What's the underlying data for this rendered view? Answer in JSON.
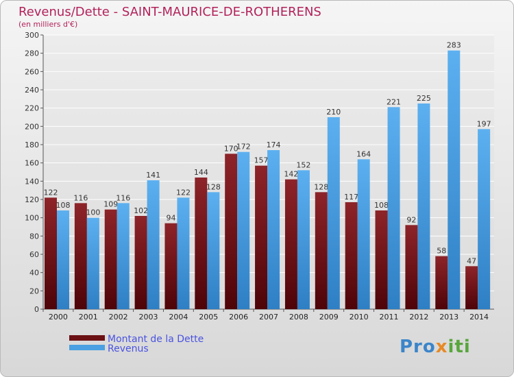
{
  "title": "Revenus/Dette - SAINT-MAURICE-DE-ROTHERENS",
  "subtitle": "(en milliers d'€)",
  "logo_text": "Proxiti",
  "colors": {
    "title": "#b2225a",
    "dette": "#7a1a1e",
    "revenus": "#4aa0e2",
    "legend_text": "#4a53e0"
  },
  "legend": [
    {
      "label": "Montant de la Dette",
      "color": "#6b1014"
    },
    {
      "label": "Revenus",
      "color": "#4aa0e2"
    }
  ],
  "chart_data": {
    "type": "bar",
    "title": "Revenus/Dette - SAINT-MAURICE-DE-ROTHERENS",
    "subtitle": "(en milliers d'€)",
    "xlabel": "",
    "ylabel": "",
    "ylim": [
      0,
      300
    ],
    "ytick_step": 20,
    "grid": "horizontal",
    "legend_position": "bottom-left",
    "categories": [
      "2000",
      "2001",
      "2002",
      "2003",
      "2004",
      "2005",
      "2006",
      "2007",
      "2008",
      "2009",
      "2010",
      "2011",
      "2012",
      "2013",
      "2014"
    ],
    "series": [
      {
        "name": "Montant de la Dette",
        "values": [
          122,
          116,
          109,
          102,
          94,
          144,
          170,
          157,
          142,
          128,
          117,
          108,
          92,
          58,
          47
        ]
      },
      {
        "name": "Revenus",
        "values": [
          108,
          100,
          116,
          141,
          122,
          128,
          172,
          174,
          152,
          210,
          164,
          221,
          225,
          283,
          197
        ]
      }
    ]
  }
}
